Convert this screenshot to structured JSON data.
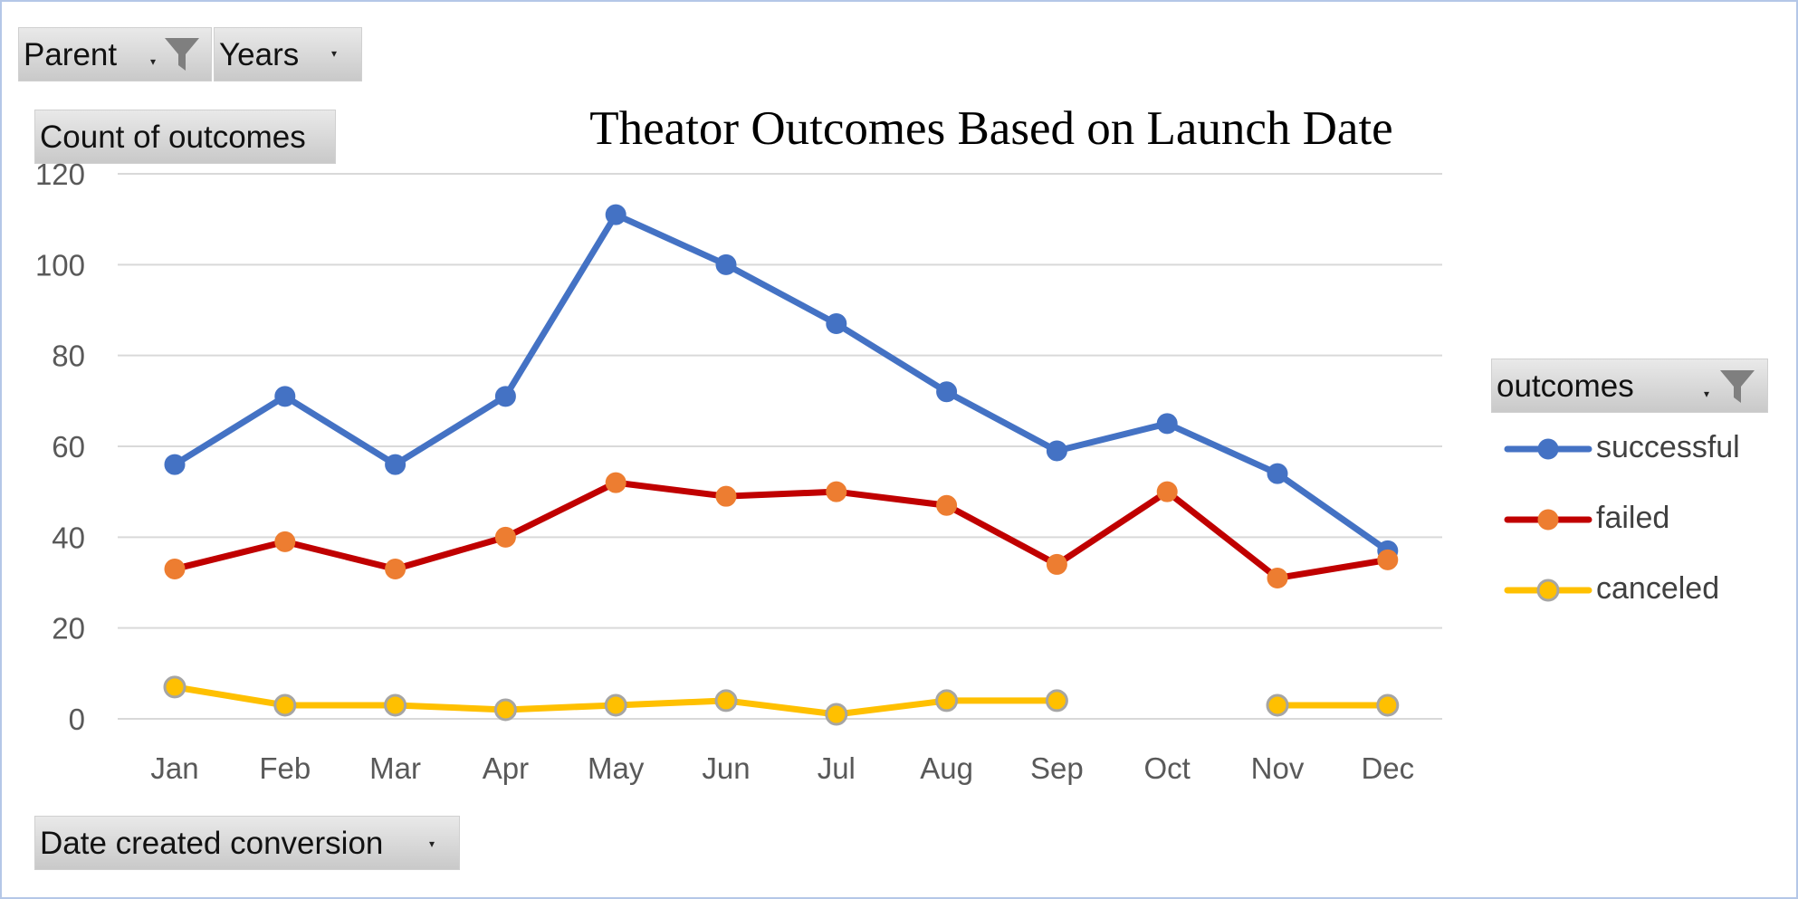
{
  "field_buttons": {
    "parent": "Parent",
    "years": "Years",
    "values": "Count of outcomes",
    "axis": "Date created conversion",
    "legend": "outcomes"
  },
  "icons": {
    "filter": "funnel-icon",
    "dropdown": "dropdown-arrow-icon"
  },
  "chart_data": {
    "type": "line",
    "title": "Theator Outcomes Based on Launch Date",
    "categories": [
      "Jan",
      "Feb",
      "Mar",
      "Apr",
      "May",
      "Jun",
      "Jul",
      "Aug",
      "Sep",
      "Oct",
      "Nov",
      "Dec"
    ],
    "ylim": [
      0,
      120
    ],
    "yticks": [
      0,
      20,
      40,
      60,
      80,
      100,
      120
    ],
    "grid": true,
    "legend_position": "right",
    "series": [
      {
        "name": "successful",
        "line_color": "#4472c4",
        "marker_color": "#4472c4",
        "values": [
          56,
          71,
          56,
          71,
          111,
          100,
          87,
          72,
          59,
          65,
          54,
          37
        ]
      },
      {
        "name": "failed",
        "line_color": "#c00000",
        "marker_color": "#ed7d31",
        "values": [
          33,
          39,
          33,
          40,
          52,
          49,
          50,
          47,
          34,
          50,
          31,
          35
        ]
      },
      {
        "name": "canceled",
        "line_color": "#ffc000",
        "marker_color": "#ffc000",
        "values": [
          7,
          3,
          3,
          2,
          3,
          4,
          1,
          4,
          4,
          null,
          3,
          3
        ]
      }
    ]
  }
}
